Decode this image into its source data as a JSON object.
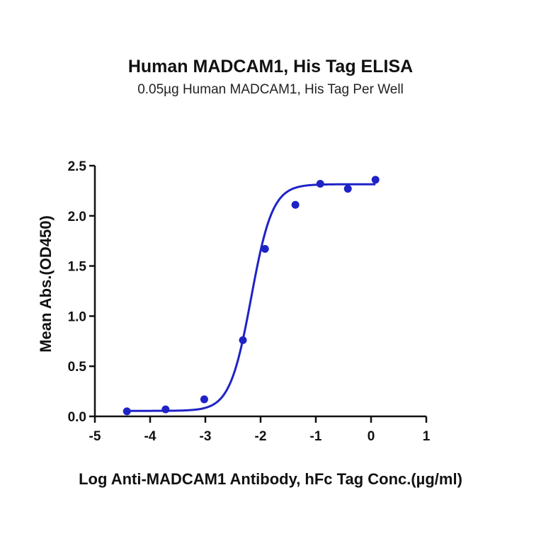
{
  "chart_data": {
    "type": "scatter",
    "title": "Human MADCAM1, His Tag ELISA",
    "subtitle": "0.05µg Human MADCAM1, His Tag Per Well",
    "xlabel": "Log Anti-MADCAM1 Antibody, hFc Tag Conc.(µg/ml)",
    "ylabel": "Mean Abs.(OD450)",
    "xlim": [
      -5,
      1
    ],
    "ylim": [
      0,
      2.5
    ],
    "x_ticks": [
      "-5",
      "-4",
      "-3",
      "-2",
      "-1",
      "0",
      "1"
    ],
    "y_ticks": [
      "0.0",
      "0.5",
      "1.0",
      "1.5",
      "2.0",
      "2.5"
    ],
    "grid": false,
    "series": [
      {
        "x": [
          -4.42,
          -3.72,
          -3.02,
          -2.32,
          -1.92,
          -1.37,
          -0.92,
          -0.42,
          0.08
        ],
        "y": [
          0.05,
          0.07,
          0.17,
          0.76,
          1.67,
          2.11,
          2.32,
          2.27,
          2.36
        ],
        "color": "#1f23c6"
      }
    ],
    "fit_curve": {
      "model": "4PL",
      "bottom": 0.055,
      "top": 2.315,
      "log_ec50": -2.17,
      "hill": 2.25,
      "color": "#1f23c6"
    }
  }
}
